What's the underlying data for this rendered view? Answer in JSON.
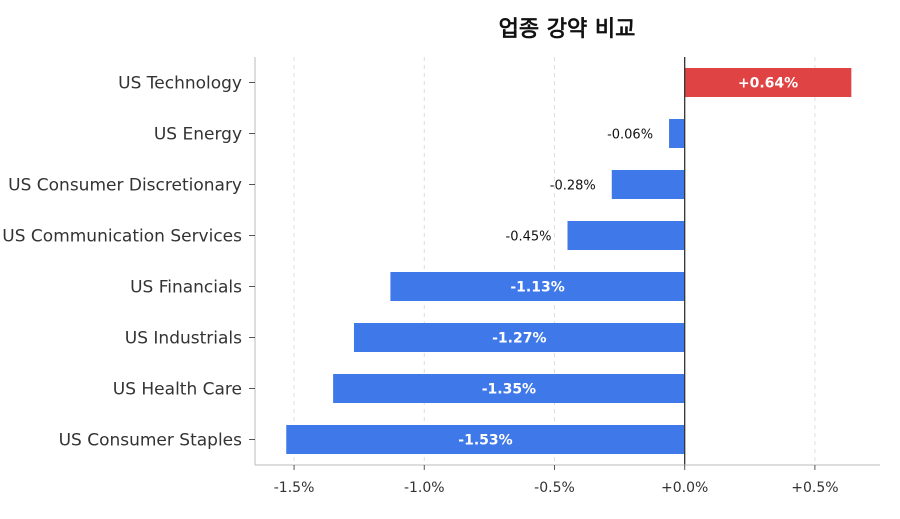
{
  "chart_data": {
    "type": "bar",
    "orientation": "horizontal",
    "title": "업종 강약 비교",
    "xlabel": "",
    "ylabel": "",
    "xlim": [
      -1.65,
      0.75
    ],
    "grid": "vertical dashed",
    "legend": "none",
    "colors": {
      "positive": "#e04343",
      "negative": "#3f78e8",
      "zero_line": "#333333"
    },
    "categories": [
      "US Technology",
      "US Energy",
      "US Consumer Discretionary",
      "US Communication Services",
      "US Financials",
      "US Industrials",
      "US Health Care",
      "US Consumer Staples"
    ],
    "values": [
      0.64,
      -0.06,
      -0.28,
      -0.45,
      -1.13,
      -1.27,
      -1.35,
      -1.53
    ],
    "value_labels": [
      "+0.64%",
      "-0.06%",
      "-0.28%",
      "-0.45%",
      "-1.13%",
      "-1.27%",
      "-1.35%",
      "-1.53%"
    ],
    "x_ticks": [
      -1.5,
      -1.0,
      -0.5,
      0.0,
      0.5
    ],
    "x_tick_labels": [
      "-1.5%",
      "-1.0%",
      "-0.5%",
      "+0.0%",
      "+0.5%"
    ]
  }
}
